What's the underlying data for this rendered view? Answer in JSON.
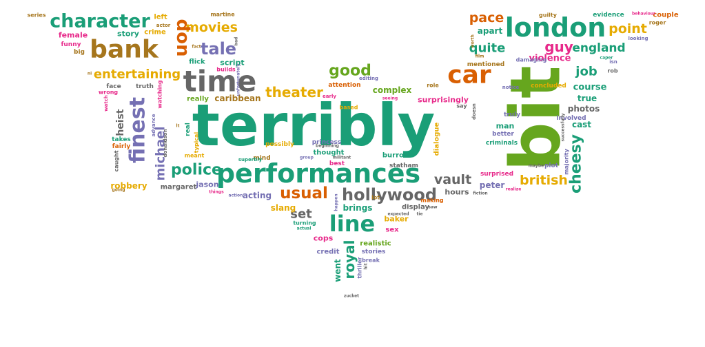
{
  "colors": {
    "green": "#1a9e77",
    "orange": "#d95f02",
    "purple": "#7570b3",
    "magenta": "#e7298a",
    "lime": "#66a61e",
    "gold": "#e6ab02",
    "brown": "#a6761d",
    "gray": "#666666"
  },
  "words": [
    {
      "text": "terribly",
      "color": "green"
    },
    {
      "text": "bit",
      "color": "lime"
    },
    {
      "text": "performances",
      "color": "green"
    },
    {
      "text": "time",
      "color": "gray"
    },
    {
      "text": "london",
      "color": "green"
    },
    {
      "text": "character",
      "color": "green"
    },
    {
      "text": "bank",
      "color": "brown"
    },
    {
      "text": "car",
      "color": "orange"
    },
    {
      "text": "finest",
      "color": "purple"
    },
    {
      "text": "line",
      "color": "green"
    },
    {
      "text": "hollywood",
      "color": "gray"
    },
    {
      "text": "police",
      "color": "green"
    },
    {
      "text": "usual",
      "color": "orange"
    },
    {
      "text": "tale",
      "color": "purple"
    },
    {
      "text": "movies",
      "color": "gold"
    },
    {
      "text": "don",
      "color": "orange"
    },
    {
      "text": "theater",
      "color": "gold"
    },
    {
      "text": "good",
      "color": "lime"
    },
    {
      "text": "guy",
      "color": "magenta"
    },
    {
      "text": "england",
      "color": "green"
    },
    {
      "text": "point",
      "color": "gold"
    },
    {
      "text": "pace",
      "color": "orange"
    },
    {
      "text": "british",
      "color": "gold"
    },
    {
      "text": "cheesy",
      "color": "green"
    },
    {
      "text": "job",
      "color": "green"
    },
    {
      "text": "vault",
      "color": "gray"
    },
    {
      "text": "entertaining",
      "color": "gold"
    },
    {
      "text": "michael",
      "color": "purple"
    },
    {
      "text": "heist",
      "color": "gray"
    },
    {
      "text": "set",
      "color": "gray"
    },
    {
      "text": "royal",
      "color": "green"
    },
    {
      "text": "quite",
      "color": "green"
    },
    {
      "text": "story",
      "color": "green"
    },
    {
      "text": "female",
      "color": "magenta"
    },
    {
      "text": "crime",
      "color": "gold"
    },
    {
      "text": "caribbean",
      "color": "brown"
    },
    {
      "text": "really",
      "color": "lime"
    },
    {
      "text": "script",
      "color": "green"
    },
    {
      "text": "flick",
      "color": "green"
    },
    {
      "text": "acting",
      "color": "purple"
    },
    {
      "text": "brings",
      "color": "green"
    },
    {
      "text": "slang",
      "color": "gold"
    },
    {
      "text": "peter",
      "color": "purple"
    },
    {
      "text": "hours",
      "color": "gray"
    },
    {
      "text": "baker",
      "color": "gold"
    },
    {
      "text": "violence",
      "color": "magenta"
    },
    {
      "text": "course",
      "color": "green"
    },
    {
      "text": "true",
      "color": "green"
    },
    {
      "text": "cast",
      "color": "green"
    },
    {
      "text": "photos",
      "color": "gray"
    },
    {
      "text": "complex",
      "color": "lime"
    },
    {
      "text": "surprisingly",
      "color": "magenta"
    },
    {
      "text": "apart",
      "color": "green"
    },
    {
      "text": "mentioned",
      "color": "brown"
    },
    {
      "text": "robbery",
      "color": "gold"
    },
    {
      "text": "margaret",
      "color": "gray"
    },
    {
      "text": "jason",
      "color": "purple"
    },
    {
      "text": "cops",
      "color": "magenta"
    },
    {
      "text": "sex",
      "color": "magenta"
    },
    {
      "text": "realistic",
      "color": "lime"
    },
    {
      "text": "stories",
      "color": "purple"
    },
    {
      "text": "credit",
      "color": "purple"
    },
    {
      "text": "went",
      "color": "green"
    },
    {
      "text": "burrows",
      "color": "green"
    },
    {
      "text": "statham",
      "color": "gray"
    },
    {
      "text": "princess",
      "color": "purple"
    },
    {
      "text": "thought",
      "color": "green"
    },
    {
      "text": "man",
      "color": "green"
    },
    {
      "text": "better",
      "color": "purple"
    },
    {
      "text": "criminals",
      "color": "green"
    },
    {
      "text": "surprised",
      "color": "magenta"
    },
    {
      "text": "involved",
      "color": "purple"
    },
    {
      "text": "truly",
      "color": "purple"
    },
    {
      "text": "dialogue",
      "color": "gold"
    },
    {
      "text": "display",
      "color": "gray"
    },
    {
      "text": "making",
      "color": "orange"
    },
    {
      "text": "attention",
      "color": "orange"
    },
    {
      "text": "based",
      "color": "gold"
    },
    {
      "text": "guilty",
      "color": "brown"
    },
    {
      "text": "evidence",
      "color": "green"
    },
    {
      "text": "couple",
      "color": "orange"
    },
    {
      "text": "roger",
      "color": "brown"
    },
    {
      "text": "series",
      "color": "brown"
    },
    {
      "text": "left",
      "color": "gold"
    },
    {
      "text": "actor",
      "color": "brown"
    },
    {
      "text": "martine",
      "color": "brown"
    },
    {
      "text": "funny",
      "color": "magenta"
    },
    {
      "text": "big",
      "color": "brown"
    },
    {
      "text": "fact",
      "color": "brown"
    },
    {
      "text": "bad",
      "color": "gray"
    },
    {
      "text": "builds",
      "color": "magenta"
    },
    {
      "text": "truth",
      "color": "gray"
    },
    {
      "text": "face",
      "color": "gray"
    },
    {
      "text": "wrong",
      "color": "magenta"
    },
    {
      "text": "takes",
      "color": "green"
    },
    {
      "text": "fairly",
      "color": "orange"
    },
    {
      "text": "caught",
      "color": "gray"
    },
    {
      "text": "going",
      "color": "brown"
    },
    {
      "text": "typical",
      "color": "gold"
    },
    {
      "text": "real",
      "color": "green"
    },
    {
      "text": "meant",
      "color": "gold"
    },
    {
      "text": "possibly",
      "color": "gold"
    },
    {
      "text": "mind",
      "color": "brown"
    },
    {
      "text": "superbly",
      "color": "green"
    },
    {
      "text": "things",
      "color": "magenta"
    },
    {
      "text": "action",
      "color": "purple"
    },
    {
      "text": "lot",
      "color": "brown"
    },
    {
      "text": "best",
      "color": "magenta"
    },
    {
      "text": "beginning",
      "color": "gray"
    },
    {
      "text": "group",
      "color": "purple"
    },
    {
      "text": "militant",
      "color": "gray"
    },
    {
      "text": "early",
      "color": "magenta"
    },
    {
      "text": "seeing",
      "color": "magenta"
    },
    {
      "text": "editing",
      "color": "purple"
    },
    {
      "text": "role",
      "color": "brown"
    },
    {
      "text": "say",
      "color": "gray"
    },
    {
      "text": "notice",
      "color": "purple"
    },
    {
      "text": "concluded",
      "color": "gold"
    },
    {
      "text": "damaging",
      "color": "purple"
    },
    {
      "text": "rob",
      "color": "gray"
    },
    {
      "text": "caper",
      "color": "green"
    },
    {
      "text": "looking",
      "color": "purple"
    },
    {
      "text": "isn",
      "color": "purple"
    },
    {
      "text": "maybe",
      "color": "gray"
    },
    {
      "text": "plot",
      "color": "purple"
    },
    {
      "text": "majority",
      "color": "purple"
    },
    {
      "text": "successfully",
      "color": "gray"
    },
    {
      "text": "realize",
      "color": "magenta"
    },
    {
      "text": "fiction",
      "color": "gray"
    },
    {
      "text": "happen",
      "color": "purple"
    },
    {
      "text": "turning",
      "color": "green"
    },
    {
      "text": "actual",
      "color": "green"
    },
    {
      "text": "expected",
      "color": "gray"
    },
    {
      "text": "saw",
      "color": "gray"
    },
    {
      "text": "tie",
      "color": "gray"
    },
    {
      "text": "thriller",
      "color": "purple"
    },
    {
      "text": "hit",
      "color": "gray"
    },
    {
      "text": "break",
      "color": "purple"
    },
    {
      "text": "watch",
      "color": "magenta"
    },
    {
      "text": "watching",
      "color": "magenta"
    },
    {
      "text": "advance",
      "color": "purple"
    },
    {
      "text": "donaldson",
      "color": "gray"
    },
    {
      "text": "unfortunately",
      "color": "purple"
    },
    {
      "text": "doesn",
      "color": "gray"
    },
    {
      "text": "film",
      "color": "brown"
    },
    {
      "text": "worth",
      "color": "brown"
    },
    {
      "text": "behaviour",
      "color": "magenta"
    },
    {
      "text": "zucket",
      "color": "gray"
    },
    {
      "text": "lt",
      "color": "brown"
    },
    {
      "text": "ni",
      "color": "brown"
    }
  ]
}
